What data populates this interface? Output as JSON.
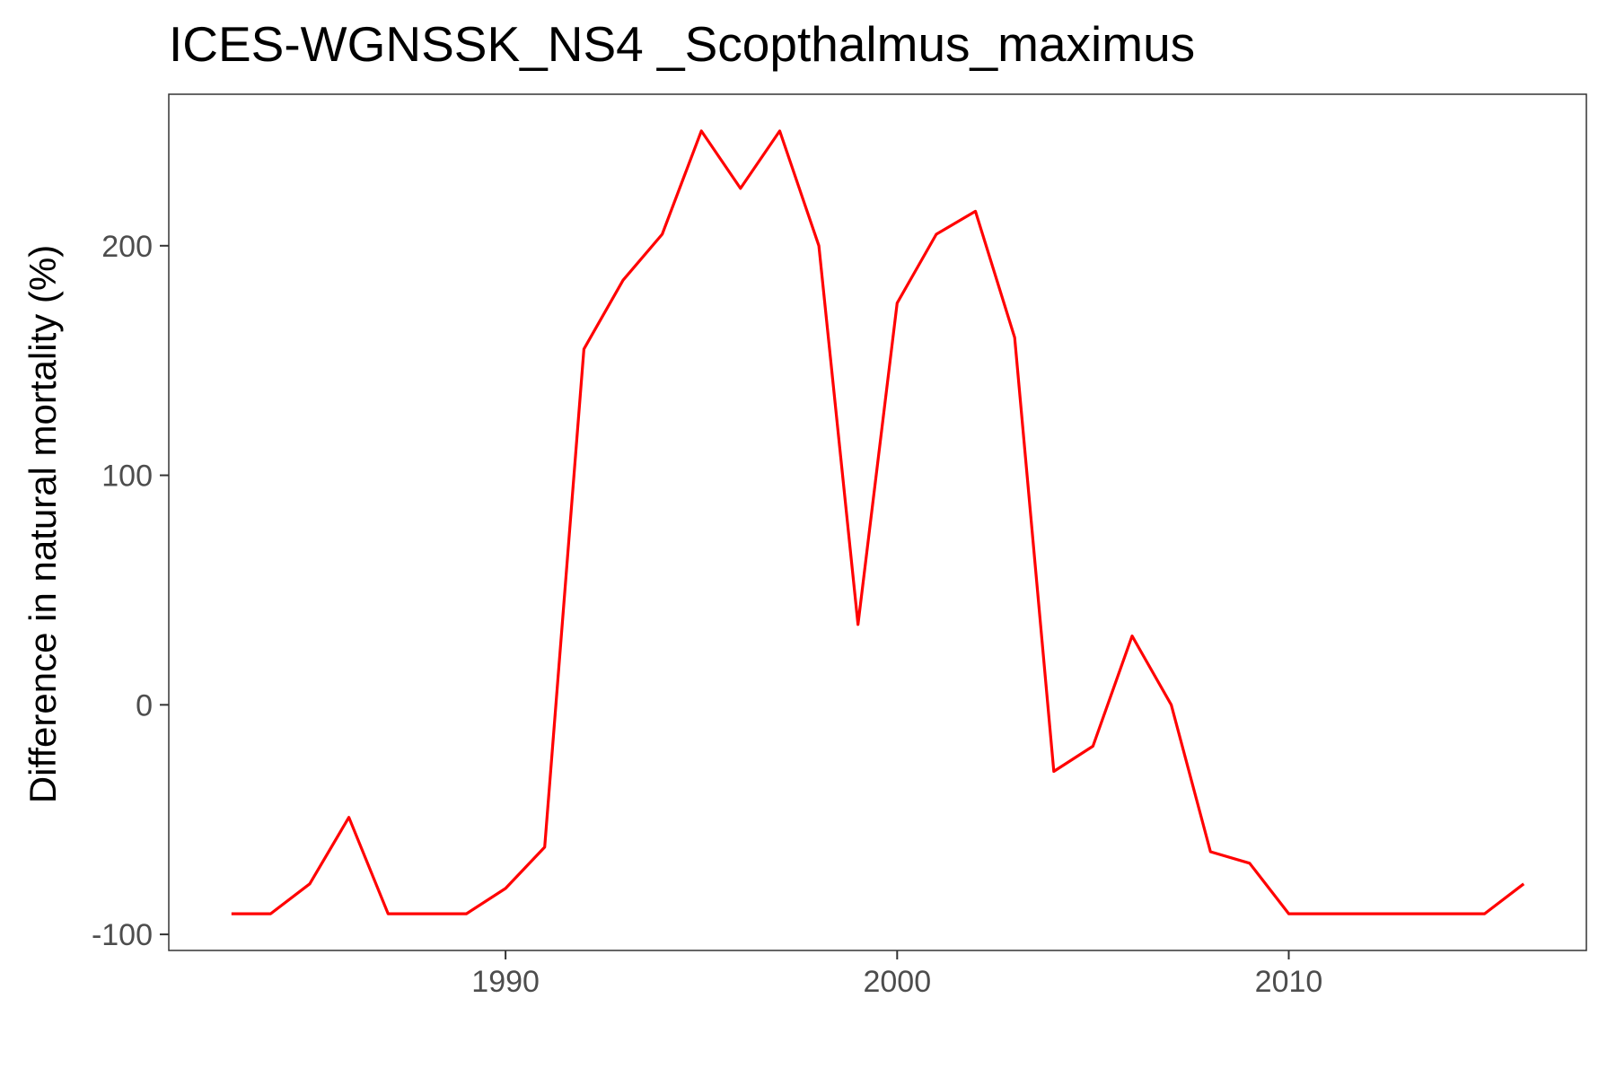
{
  "chart_data": {
    "type": "line",
    "title": "ICES-WGNSSK_NS4 _Scopthalmus_maximus",
    "xlabel": "",
    "ylabel": "Difference in natural mortality (%)",
    "xlim": [
      1981.4,
      2017.6
    ],
    "ylim": [
      -107,
      266
    ],
    "x_ticks": [
      1990,
      2000,
      2010
    ],
    "y_ticks": [
      -100,
      0,
      100,
      200
    ],
    "grid": false,
    "legend": "none",
    "series": [
      {
        "color": "#ff0000",
        "x": [
          1983,
          1984,
          1985,
          1986,
          1987,
          1988,
          1989,
          1990,
          1991,
          1992,
          1993,
          1994,
          1995,
          1996,
          1997,
          1998,
          1999,
          2000,
          2001,
          2002,
          2003,
          2004,
          2005,
          2006,
          2007,
          2008,
          2009,
          2010,
          2011,
          2012,
          2013,
          2014,
          2015,
          2016
        ],
        "y": [
          -91,
          -91,
          -78,
          -49,
          -91,
          -91,
          -91,
          -80,
          -62,
          155,
          185,
          205,
          250,
          225,
          250,
          200,
          35,
          175,
          205,
          215,
          160,
          -29,
          -18,
          30,
          0,
          -64,
          -69,
          -91,
          -91,
          -91,
          -91,
          -91,
          -91,
          -78
        ]
      }
    ]
  }
}
